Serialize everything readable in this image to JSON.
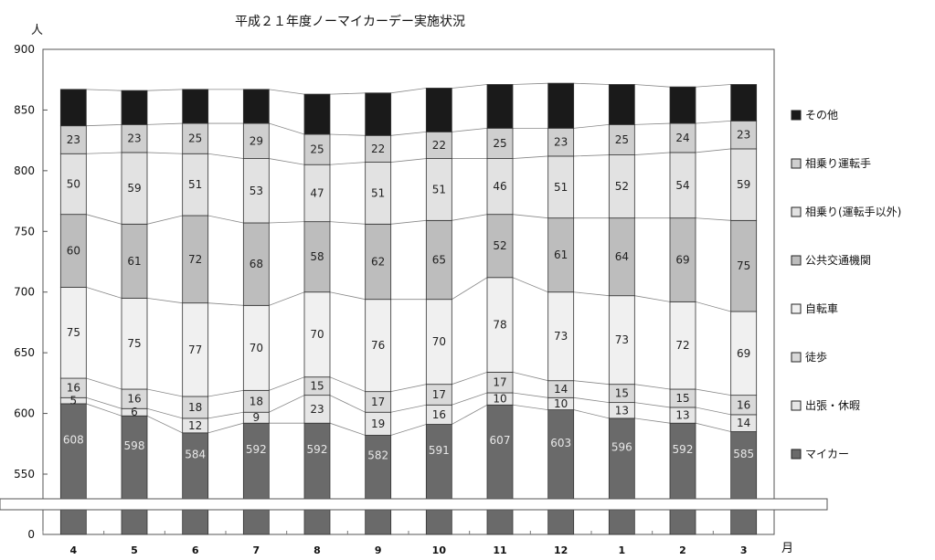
{
  "chart_data": {
    "type": "bar",
    "stacked": true,
    "title": "平成２１年度ノーマイカーデー実施状況",
    "y_unit_label": "人",
    "x_unit_label": "月",
    "categories": [
      "4",
      "5",
      "6",
      "7",
      "8",
      "9",
      "10",
      "11",
      "12",
      "1",
      "2",
      "3"
    ],
    "y_ticks": [
      "900",
      "850",
      "800",
      "750",
      "700",
      "650",
      "600",
      "550",
      "0"
    ],
    "axis_break": true,
    "ylim": [
      0,
      900
    ],
    "totals": [
      867,
      866,
      867,
      867,
      863,
      864,
      868,
      871,
      872,
      871,
      869,
      871
    ],
    "legend_position": "right",
    "series": [
      {
        "name": "マイカー",
        "label_tone": "light",
        "color": "#6a6a6a",
        "values": [
          608,
          598,
          584,
          592,
          592,
          582,
          591,
          607,
          603,
          596,
          592,
          585
        ],
        "label_visible": true
      },
      {
        "name": "出張・休暇",
        "label_tone": "dark",
        "color": "#e6e6e6",
        "values": [
          5,
          6,
          12,
          9,
          23,
          19,
          16,
          10,
          10,
          13,
          13,
          14
        ]
      },
      {
        "name": "徒歩",
        "label_tone": "dark",
        "color": "#d9d9d9",
        "values": [
          16,
          16,
          18,
          18,
          15,
          17,
          17,
          17,
          14,
          15,
          15,
          16
        ]
      },
      {
        "name": "自転車",
        "label_tone": "dark",
        "color": "#f0f0f0",
        "values": [
          75,
          75,
          77,
          70,
          70,
          76,
          70,
          78,
          73,
          73,
          72,
          69
        ]
      },
      {
        "name": "公共交通機関",
        "label_tone": "dark",
        "color": "#bdbdbd",
        "values": [
          60,
          61,
          72,
          68,
          58,
          62,
          65,
          52,
          61,
          64,
          69,
          75
        ]
      },
      {
        "name": "相乗り(運転手以外)",
        "label_tone": "dark",
        "color": "#e2e2e2",
        "values": [
          50,
          59,
          51,
          53,
          47,
          51,
          51,
          46,
          51,
          52,
          54,
          59
        ]
      },
      {
        "name": "相乗り運転手",
        "label_tone": "dark",
        "color": "#cfcfcf",
        "values": [
          23,
          23,
          25,
          29,
          25,
          22,
          22,
          25,
          23,
          25,
          24,
          23
        ]
      },
      {
        "name": "その他",
        "label_tone": "none",
        "color": "#1a1a1a",
        "values": [
          30,
          28,
          28,
          28,
          33,
          35,
          36,
          36,
          37,
          33,
          30,
          30
        ]
      }
    ],
    "legend_order": [
      "その他",
      "相乗り運転手",
      "相乗り(運転手以外)",
      "公共交通機関",
      "自転車",
      "徒歩",
      "出張・休暇",
      "マイカー"
    ]
  }
}
